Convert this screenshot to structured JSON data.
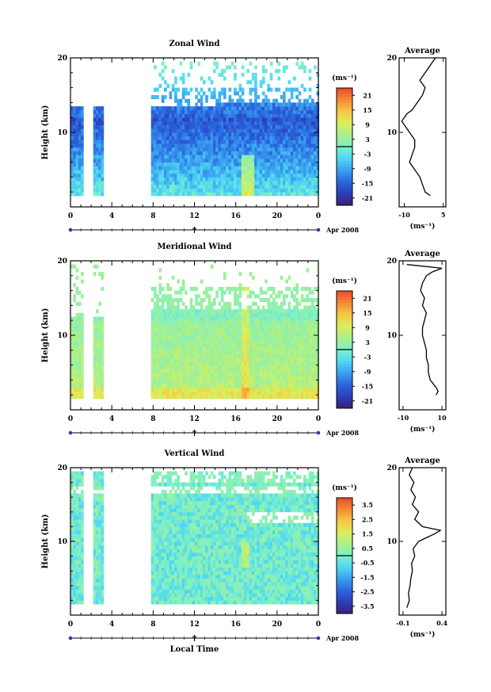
{
  "chart_data": [
    {
      "type": "heatmap",
      "title": "Zonal Wind",
      "ylabel": "Height (km)",
      "xlabel": "",
      "xlim": [
        0,
        24
      ],
      "ylim": [
        0,
        20
      ],
      "x_ticks": [
        "0",
        "4",
        "8",
        "12",
        "16",
        "20",
        "0"
      ],
      "y_ticks": [
        "10",
        "20"
      ],
      "date_marker": "7",
      "date_label": "Apr 2008",
      "colorbar": {
        "unit_label": "(ms⁻¹)",
        "ticks": [
          "21",
          "15",
          "9",
          "3",
          "-3",
          "-9",
          "-15",
          "-21"
        ],
        "range": [
          -24,
          24
        ]
      },
      "data_segments_hours": [
        [
          0,
          1.2
        ],
        [
          2.2,
          3.2
        ],
        [
          7.8,
          24
        ]
      ],
      "average": {
        "title": "Average",
        "xlim": [
          -12,
          6
        ],
        "x_ticks": [
          "-10",
          "5"
        ],
        "x_tick_values": [
          -10,
          5
        ],
        "xlabel": "(ms⁻¹)",
        "heights_km": [
          1.5,
          2,
          3,
          4,
          5,
          6,
          7,
          8,
          9,
          10,
          11,
          11.5,
          12,
          12.5,
          13,
          14,
          15,
          16,
          17,
          18,
          19,
          20
        ],
        "values": [
          0,
          -2,
          -3,
          -4,
          -6,
          -8,
          -7,
          -6,
          -6,
          -8,
          -10,
          -11,
          -10,
          -9,
          -7,
          -5,
          -3,
          -2,
          -4,
          -2,
          0,
          2
        ]
      }
    },
    {
      "type": "heatmap",
      "title": "Meridional Wind",
      "ylabel": "Height (km)",
      "xlabel": "",
      "xlim": [
        0,
        24
      ],
      "ylim": [
        0,
        20
      ],
      "x_ticks": [
        "0",
        "4",
        "8",
        "12",
        "16",
        "20",
        "0"
      ],
      "y_ticks": [
        "10",
        "20"
      ],
      "date_marker": "7",
      "date_label": "Apr 2008",
      "colorbar": {
        "unit_label": "(ms⁻¹)",
        "ticks": [
          "21",
          "15",
          "9",
          "3",
          "-3",
          "-9",
          "-15",
          "-21"
        ],
        "range": [
          -24,
          24
        ]
      },
      "data_segments_hours": [
        [
          0,
          1.2
        ],
        [
          2.2,
          3.2
        ],
        [
          7.8,
          24
        ]
      ],
      "average": {
        "title": "Average",
        "xlim": [
          -12,
          12
        ],
        "x_ticks": [
          "-10",
          "10"
        ],
        "x_tick_values": [
          -10,
          10
        ],
        "xlabel": "(ms⁻¹)",
        "heights_km": [
          2,
          2.5,
          3,
          4,
          5,
          6,
          7,
          8,
          9,
          10,
          11,
          12,
          13,
          14,
          15,
          16,
          17,
          18,
          18.5,
          19,
          19.5
        ],
        "values": [
          7,
          8,
          7,
          4,
          3,
          3,
          2,
          2,
          1,
          0,
          0,
          1,
          2,
          0,
          1,
          -1,
          0,
          2,
          5,
          10,
          -8
        ]
      }
    },
    {
      "type": "heatmap",
      "title": "Vertical Wind",
      "ylabel": "Height (km)",
      "xlabel": "Local Time",
      "xlim": [
        0,
        24
      ],
      "ylim": [
        0,
        20
      ],
      "x_ticks": [
        "0",
        "4",
        "8",
        "12",
        "16",
        "20",
        "0"
      ],
      "y_ticks": [
        "10",
        "20"
      ],
      "date_marker": "7",
      "date_label": "Apr 2008",
      "colorbar": {
        "unit_label": "(ms⁻¹)",
        "ticks": [
          "3.5",
          "2.5",
          "1.5",
          "0.5",
          "-0.5",
          "-1.5",
          "-2.5",
          "-3.5"
        ],
        "range": [
          -4,
          4
        ]
      },
      "data_segments_hours": [
        [
          0,
          1.2
        ],
        [
          2.2,
          3.2
        ],
        [
          7.8,
          24
        ]
      ],
      "average": {
        "title": "Average",
        "xlim": [
          -0.15,
          0.45
        ],
        "x_ticks": [
          "-0.1",
          "0.4"
        ],
        "x_tick_values": [
          -0.1,
          0.4
        ],
        "xlabel": "(ms⁻¹)",
        "heights_km": [
          1,
          2,
          3,
          4,
          5,
          6,
          7,
          8,
          9,
          10,
          10.5,
          11,
          11.5,
          12,
          13,
          14,
          15,
          16,
          17,
          18,
          19,
          20
        ],
        "values": [
          -0.05,
          -0.02,
          -0.03,
          -0.01,
          0,
          0.02,
          0.01,
          0.05,
          0.03,
          0.1,
          0.2,
          0.3,
          0.38,
          0.15,
          0.05,
          0.1,
          0.02,
          0.06,
          0.0,
          0.04,
          -0.02,
          0.02
        ]
      }
    }
  ]
}
